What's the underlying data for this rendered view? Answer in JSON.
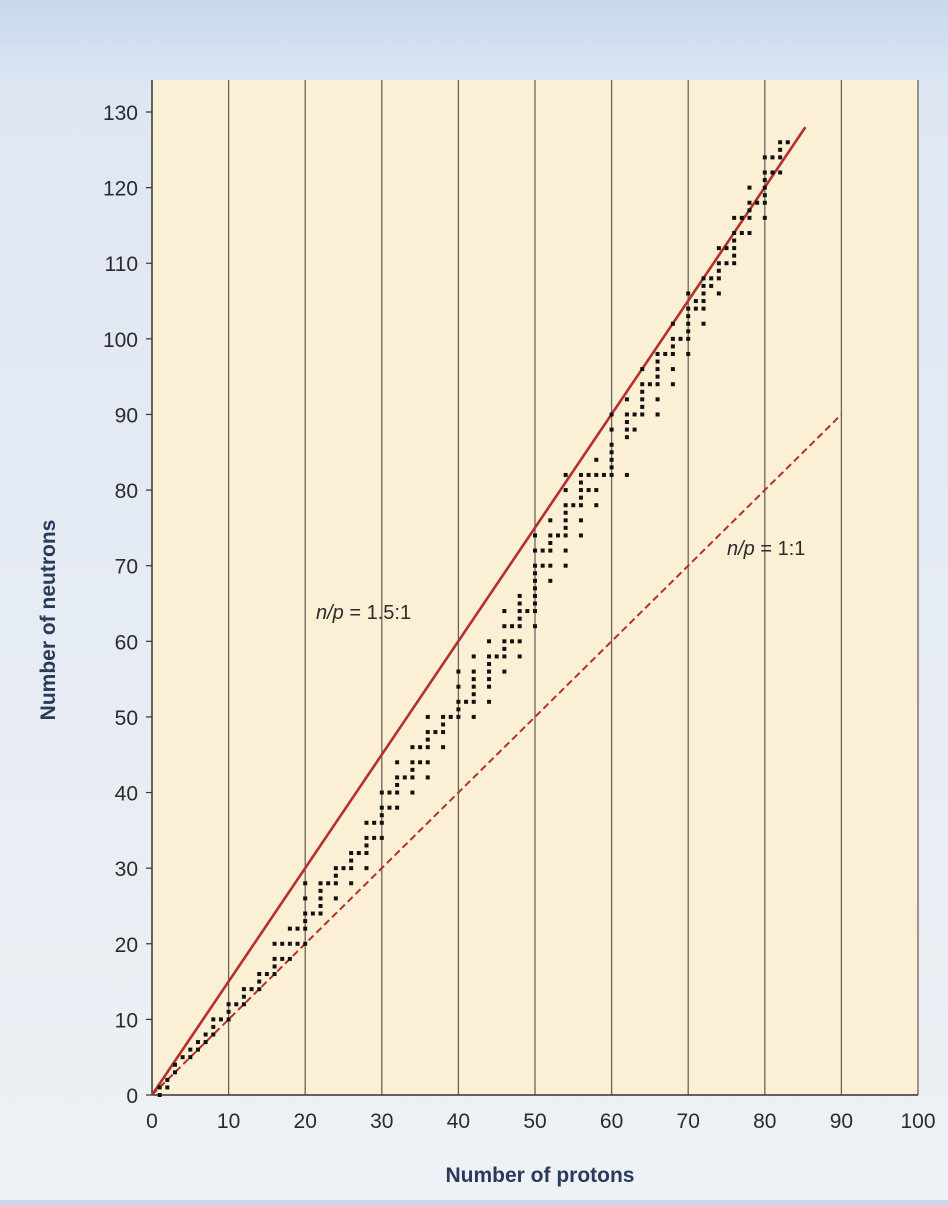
{
  "chart_data": {
    "type": "scatter",
    "title": "",
    "xlabel": "Number of protons",
    "ylabel": "Number of neutrons",
    "xlim": [
      0,
      100
    ],
    "ylim": [
      0,
      130
    ],
    "x_ticks": [
      0,
      10,
      20,
      30,
      40,
      50,
      60,
      70,
      80,
      90,
      100
    ],
    "y_ticks": [
      0,
      10,
      20,
      30,
      40,
      50,
      60,
      70,
      80,
      90,
      100,
      110,
      120,
      130
    ],
    "grid": "vertical",
    "colors": {
      "plot_background": "#fbf0d6",
      "points": "#111111",
      "ratio_lines": "#b4302a",
      "gridlines": "#6b6455"
    },
    "reference_lines": [
      {
        "label": "n/p = 1.5:1",
        "label_ratio": "n/p",
        "label_value": " = 1.5:1",
        "style": "solid",
        "from": [
          0,
          0
        ],
        "to": [
          85.3,
          128
        ]
      },
      {
        "label": "n/p = 1:1",
        "label_ratio": "n/p",
        "label_value": " = 1:1",
        "style": "dashed",
        "from": [
          0,
          0
        ],
        "to": [
          90,
          90
        ]
      }
    ],
    "stable_nuclei": [
      [
        1,
        0
      ],
      [
        1,
        1
      ],
      [
        2,
        1
      ],
      [
        2,
        2
      ],
      [
        3,
        3
      ],
      [
        3,
        4
      ],
      [
        4,
        5
      ],
      [
        5,
        5
      ],
      [
        5,
        6
      ],
      [
        6,
        6
      ],
      [
        6,
        7
      ],
      [
        7,
        7
      ],
      [
        7,
        8
      ],
      [
        8,
        8
      ],
      [
        8,
        9
      ],
      [
        8,
        10
      ],
      [
        9,
        10
      ],
      [
        10,
        10
      ],
      [
        10,
        11
      ],
      [
        10,
        12
      ],
      [
        11,
        12
      ],
      [
        12,
        12
      ],
      [
        12,
        13
      ],
      [
        12,
        14
      ],
      [
        13,
        14
      ],
      [
        14,
        14
      ],
      [
        14,
        15
      ],
      [
        14,
        16
      ],
      [
        15,
        16
      ],
      [
        16,
        16
      ],
      [
        16,
        17
      ],
      [
        16,
        18
      ],
      [
        16,
        20
      ],
      [
        17,
        18
      ],
      [
        17,
        20
      ],
      [
        18,
        18
      ],
      [
        18,
        20
      ],
      [
        18,
        22
      ],
      [
        19,
        20
      ],
      [
        19,
        22
      ],
      [
        20,
        20
      ],
      [
        20,
        22
      ],
      [
        20,
        23
      ],
      [
        20,
        24
      ],
      [
        20,
        26
      ],
      [
        20,
        28
      ],
      [
        21,
        24
      ],
      [
        22,
        24
      ],
      [
        22,
        25
      ],
      [
        22,
        26
      ],
      [
        22,
        27
      ],
      [
        22,
        28
      ],
      [
        23,
        28
      ],
      [
        24,
        26
      ],
      [
        24,
        28
      ],
      [
        24,
        29
      ],
      [
        24,
        30
      ],
      [
        25,
        30
      ],
      [
        26,
        28
      ],
      [
        26,
        30
      ],
      [
        26,
        31
      ],
      [
        26,
        32
      ],
      [
        27,
        32
      ],
      [
        28,
        30
      ],
      [
        28,
        32
      ],
      [
        28,
        33
      ],
      [
        28,
        34
      ],
      [
        28,
        36
      ],
      [
        29,
        34
      ],
      [
        29,
        36
      ],
      [
        30,
        34
      ],
      [
        30,
        36
      ],
      [
        30,
        37
      ],
      [
        30,
        38
      ],
      [
        30,
        40
      ],
      [
        31,
        38
      ],
      [
        31,
        40
      ],
      [
        32,
        38
      ],
      [
        32,
        40
      ],
      [
        32,
        41
      ],
      [
        32,
        42
      ],
      [
        32,
        44
      ],
      [
        33,
        42
      ],
      [
        34,
        40
      ],
      [
        34,
        42
      ],
      [
        34,
        43
      ],
      [
        34,
        44
      ],
      [
        34,
        46
      ],
      [
        35,
        44
      ],
      [
        35,
        46
      ],
      [
        36,
        42
      ],
      [
        36,
        44
      ],
      [
        36,
        46
      ],
      [
        36,
        47
      ],
      [
        36,
        48
      ],
      [
        36,
        50
      ],
      [
        37,
        48
      ],
      [
        38,
        46
      ],
      [
        38,
        48
      ],
      [
        38,
        49
      ],
      [
        38,
        50
      ],
      [
        39,
        50
      ],
      [
        40,
        50
      ],
      [
        40,
        51
      ],
      [
        40,
        52
      ],
      [
        40,
        54
      ],
      [
        40,
        56
      ],
      [
        41,
        52
      ],
      [
        42,
        50
      ],
      [
        42,
        52
      ],
      [
        42,
        53
      ],
      [
        42,
        54
      ],
      [
        42,
        55
      ],
      [
        42,
        56
      ],
      [
        42,
        58
      ],
      [
        44,
        52
      ],
      [
        44,
        54
      ],
      [
        44,
        55
      ],
      [
        44,
        56
      ],
      [
        44,
        57
      ],
      [
        44,
        58
      ],
      [
        44,
        60
      ],
      [
        45,
        58
      ],
      [
        46,
        56
      ],
      [
        46,
        58
      ],
      [
        46,
        59
      ],
      [
        46,
        60
      ],
      [
        46,
        62
      ],
      [
        46,
        64
      ],
      [
        47,
        60
      ],
      [
        47,
        62
      ],
      [
        48,
        58
      ],
      [
        48,
        60
      ],
      [
        48,
        62
      ],
      [
        48,
        63
      ],
      [
        48,
        64
      ],
      [
        48,
        65
      ],
      [
        48,
        66
      ],
      [
        49,
        64
      ],
      [
        50,
        62
      ],
      [
        50,
        64
      ],
      [
        50,
        65
      ],
      [
        50,
        66
      ],
      [
        50,
        67
      ],
      [
        50,
        68
      ],
      [
        50,
        69
      ],
      [
        50,
        70
      ],
      [
        50,
        72
      ],
      [
        50,
        74
      ],
      [
        51,
        70
      ],
      [
        51,
        72
      ],
      [
        52,
        68
      ],
      [
        52,
        70
      ],
      [
        52,
        72
      ],
      [
        52,
        73
      ],
      [
        52,
        74
      ],
      [
        52,
        76
      ],
      [
        53,
        74
      ],
      [
        54,
        70
      ],
      [
        54,
        72
      ],
      [
        54,
        74
      ],
      [
        54,
        75
      ],
      [
        54,
        76
      ],
      [
        54,
        77
      ],
      [
        54,
        78
      ],
      [
        54,
        80
      ],
      [
        54,
        82
      ],
      [
        55,
        78
      ],
      [
        56,
        74
      ],
      [
        56,
        76
      ],
      [
        56,
        78
      ],
      [
        56,
        79
      ],
      [
        56,
        80
      ],
      [
        56,
        81
      ],
      [
        56,
        82
      ],
      [
        57,
        80
      ],
      [
        57,
        82
      ],
      [
        58,
        78
      ],
      [
        58,
        80
      ],
      [
        58,
        82
      ],
      [
        58,
        84
      ],
      [
        59,
        82
      ],
      [
        60,
        82
      ],
      [
        60,
        83
      ],
      [
        60,
        84
      ],
      [
        60,
        85
      ],
      [
        60,
        86
      ],
      [
        60,
        88
      ],
      [
        60,
        90
      ],
      [
        62,
        82
      ],
      [
        62,
        87
      ],
      [
        62,
        88
      ],
      [
        62,
        89
      ],
      [
        62,
        90
      ],
      [
        62,
        92
      ],
      [
        63,
        88
      ],
      [
        63,
        90
      ],
      [
        64,
        90
      ],
      [
        64,
        91
      ],
      [
        64,
        92
      ],
      [
        64,
        93
      ],
      [
        64,
        94
      ],
      [
        64,
        96
      ],
      [
        65,
        94
      ],
      [
        66,
        90
      ],
      [
        66,
        92
      ],
      [
        66,
        94
      ],
      [
        66,
        95
      ],
      [
        66,
        96
      ],
      [
        66,
        97
      ],
      [
        66,
        98
      ],
      [
        67,
        98
      ],
      [
        68,
        94
      ],
      [
        68,
        96
      ],
      [
        68,
        98
      ],
      [
        68,
        99
      ],
      [
        68,
        100
      ],
      [
        68,
        102
      ],
      [
        69,
        100
      ],
      [
        70,
        98
      ],
      [
        70,
        100
      ],
      [
        70,
        101
      ],
      [
        70,
        102
      ],
      [
        70,
        103
      ],
      [
        70,
        104
      ],
      [
        70,
        106
      ],
      [
        71,
        104
      ],
      [
        71,
        105
      ],
      [
        72,
        102
      ],
      [
        72,
        104
      ],
      [
        72,
        105
      ],
      [
        72,
        106
      ],
      [
        72,
        107
      ],
      [
        72,
        108
      ],
      [
        73,
        107
      ],
      [
        73,
        108
      ],
      [
        74,
        106
      ],
      [
        74,
        108
      ],
      [
        74,
        109
      ],
      [
        74,
        110
      ],
      [
        74,
        112
      ],
      [
        75,
        110
      ],
      [
        75,
        112
      ],
      [
        76,
        110
      ],
      [
        76,
        111
      ],
      [
        76,
        112
      ],
      [
        76,
        113
      ],
      [
        76,
        114
      ],
      [
        76,
        116
      ],
      [
        77,
        114
      ],
      [
        77,
        116
      ],
      [
        78,
        114
      ],
      [
        78,
        116
      ],
      [
        78,
        117
      ],
      [
        78,
        118
      ],
      [
        78,
        120
      ],
      [
        79,
        118
      ],
      [
        80,
        116
      ],
      [
        80,
        118
      ],
      [
        80,
        119
      ],
      [
        80,
        120
      ],
      [
        80,
        121
      ],
      [
        80,
        122
      ],
      [
        80,
        124
      ],
      [
        81,
        122
      ],
      [
        81,
        124
      ],
      [
        82,
        122
      ],
      [
        82,
        124
      ],
      [
        82,
        125
      ],
      [
        82,
        126
      ],
      [
        83,
        126
      ]
    ]
  }
}
